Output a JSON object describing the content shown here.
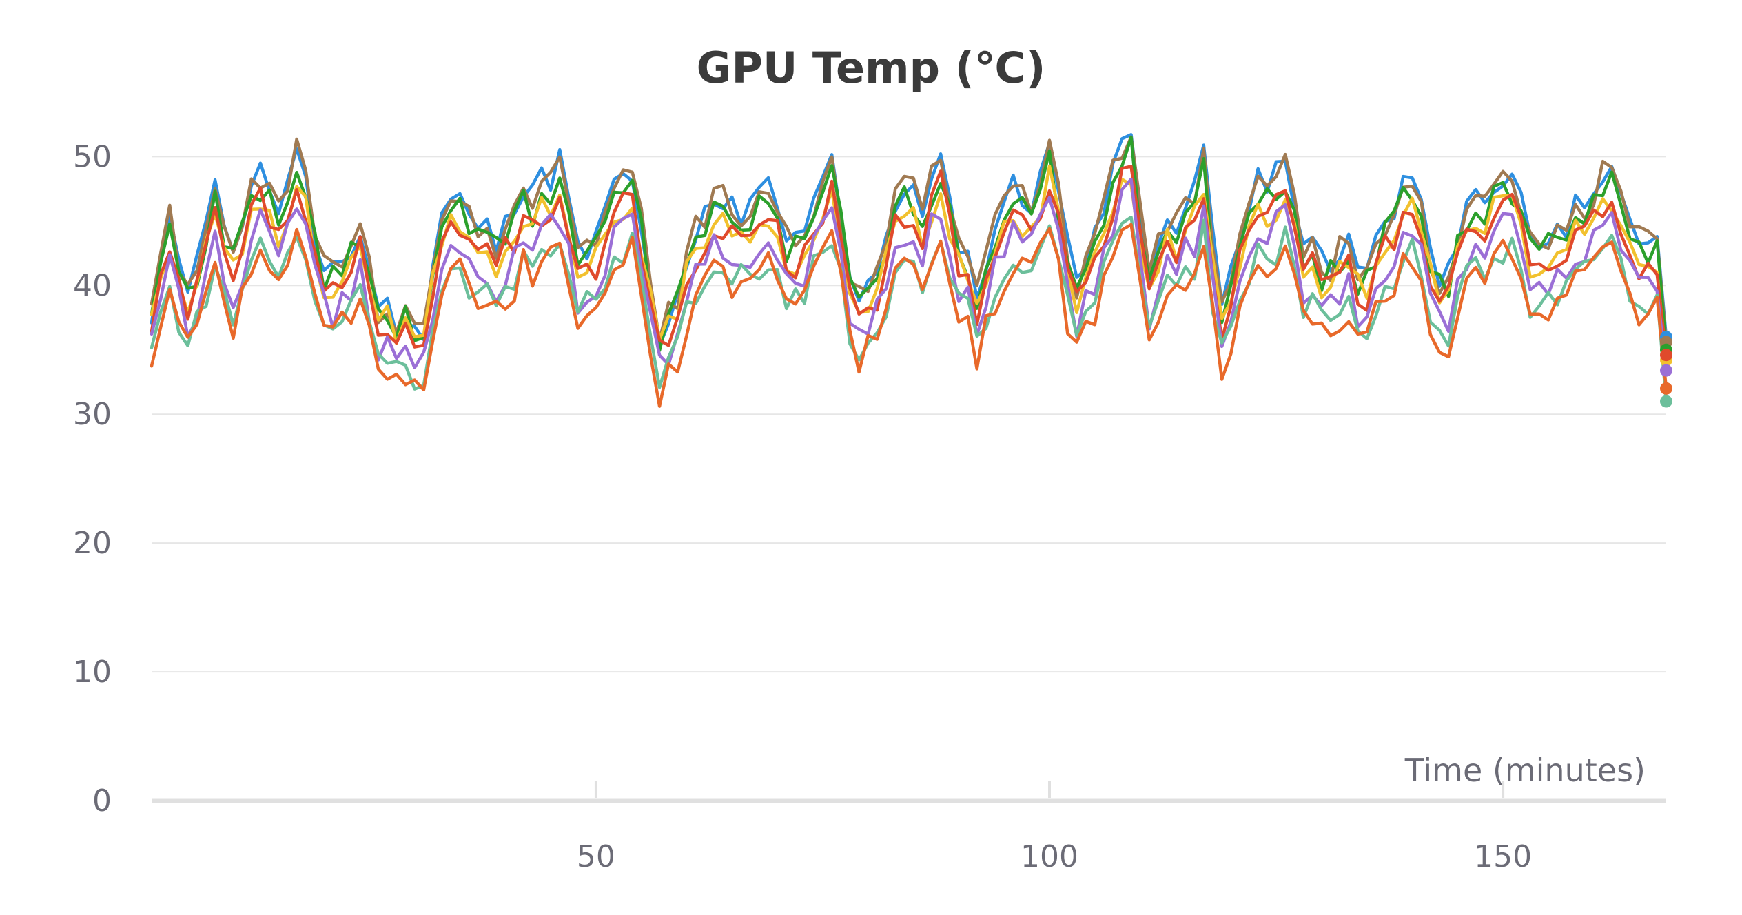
{
  "chart_data": {
    "type": "line",
    "title": "GPU Temp (℃)",
    "xlabel": "Time (minutes)",
    "ylabel": "",
    "xlim": [
      1,
      168
    ],
    "ylim": [
      0,
      52
    ],
    "x_ticks": [
      50,
      100,
      150
    ],
    "y_ticks": [
      0,
      10,
      20,
      30,
      40,
      50
    ],
    "grid": "horizontal",
    "legend": "none",
    "sampling_interval_minutes": 1,
    "anchors": [
      {
        "x": 1,
        "v": 37
      },
      {
        "x": 3,
        "v": 44
      },
      {
        "x": 5,
        "v": 38
      },
      {
        "x": 8,
        "v": 45
      },
      {
        "x": 10,
        "v": 41
      },
      {
        "x": 13,
        "v": 47
      },
      {
        "x": 15,
        "v": 44
      },
      {
        "x": 17,
        "v": 48
      },
      {
        "x": 20,
        "v": 39
      },
      {
        "x": 22,
        "v": 40
      },
      {
        "x": 24,
        "v": 43
      },
      {
        "x": 26,
        "v": 37
      },
      {
        "x": 29,
        "v": 36
      },
      {
        "x": 31,
        "v": 36
      },
      {
        "x": 34,
        "v": 46
      },
      {
        "x": 36,
        "v": 43
      },
      {
        "x": 39,
        "v": 42
      },
      {
        "x": 42,
        "v": 45
      },
      {
        "x": 44,
        "v": 45
      },
      {
        "x": 46,
        "v": 47
      },
      {
        "x": 48,
        "v": 41
      },
      {
        "x": 50,
        "v": 41
      },
      {
        "x": 52,
        "v": 45
      },
      {
        "x": 54,
        "v": 46
      },
      {
        "x": 57,
        "v": 35
      },
      {
        "x": 59,
        "v": 38
      },
      {
        "x": 61,
        "v": 42
      },
      {
        "x": 63,
        "v": 45
      },
      {
        "x": 66,
        "v": 43
      },
      {
        "x": 69,
        "v": 46
      },
      {
        "x": 71,
        "v": 42
      },
      {
        "x": 73,
        "v": 42
      },
      {
        "x": 76,
        "v": 47
      },
      {
        "x": 78,
        "v": 39
      },
      {
        "x": 80,
        "v": 38
      },
      {
        "x": 82,
        "v": 42
      },
      {
        "x": 84,
        "v": 46
      },
      {
        "x": 86,
        "v": 44
      },
      {
        "x": 88,
        "v": 47
      },
      {
        "x": 90,
        "v": 42
      },
      {
        "x": 92,
        "v": 38
      },
      {
        "x": 94,
        "v": 43
      },
      {
        "x": 96,
        "v": 46
      },
      {
        "x": 98,
        "v": 44
      },
      {
        "x": 100,
        "v": 48
      },
      {
        "x": 103,
        "v": 38
      },
      {
        "x": 105,
        "v": 42
      },
      {
        "x": 107,
        "v": 46
      },
      {
        "x": 109,
        "v": 49
      },
      {
        "x": 111,
        "v": 39
      },
      {
        "x": 113,
        "v": 43
      },
      {
        "x": 115,
        "v": 44
      },
      {
        "x": 117,
        "v": 47
      },
      {
        "x": 119,
        "v": 37
      },
      {
        "x": 121,
        "v": 42
      },
      {
        "x": 123,
        "v": 45
      },
      {
        "x": 126,
        "v": 47
      },
      {
        "x": 128,
        "v": 42
      },
      {
        "x": 130,
        "v": 40
      },
      {
        "x": 133,
        "v": 41
      },
      {
        "x": 135,
        "v": 39
      },
      {
        "x": 137,
        "v": 43
      },
      {
        "x": 140,
        "v": 46
      },
      {
        "x": 142,
        "v": 40
      },
      {
        "x": 144,
        "v": 39
      },
      {
        "x": 146,
        "v": 44
      },
      {
        "x": 148,
        "v": 45
      },
      {
        "x": 151,
        "v": 46
      },
      {
        "x": 153,
        "v": 42
      },
      {
        "x": 155,
        "v": 41
      },
      {
        "x": 157,
        "v": 43
      },
      {
        "x": 160,
        "v": 45
      },
      {
        "x": 162,
        "v": 46
      },
      {
        "x": 164,
        "v": 43
      },
      {
        "x": 166,
        "v": 41
      },
      {
        "x": 167,
        "v": 42
      }
    ],
    "series": [
      {
        "color": "#2e8fe0",
        "offset": 2.2,
        "amp": 1.12,
        "seed": 1,
        "last": 36.0
      },
      {
        "color": "#a07a52",
        "offset": 2.0,
        "amp": 1.12,
        "seed": 2,
        "last": 35.6
      },
      {
        "color": "#2ca02c",
        "offset": 1.2,
        "amp": 1.05,
        "seed": 3,
        "last": 35.0
      },
      {
        "color": "#f2c12e",
        "offset": 0.2,
        "amp": 0.95,
        "seed": 4,
        "last": 34.2
      },
      {
        "color": "#e04a2c",
        "offset": 0.0,
        "amp": 1.05,
        "seed": 5,
        "last": 34.6
      },
      {
        "color": "#9b6fd6",
        "offset": -1.5,
        "amp": 1.0,
        "seed": 6,
        "last": 33.4
      },
      {
        "color": "#6cbf9b",
        "offset": -3.0,
        "amp": 0.9,
        "seed": 7,
        "last": 31.0
      },
      {
        "color": "#e8692a",
        "offset": -3.6,
        "amp": 1.0,
        "seed": 8,
        "last": 32.0
      }
    ]
  }
}
